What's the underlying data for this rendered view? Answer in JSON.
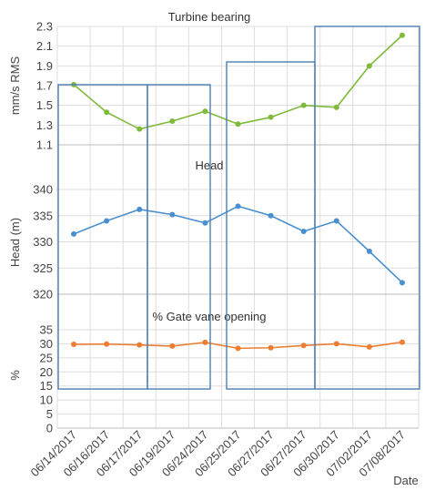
{
  "chart_data": {
    "x": [
      "06/14/2017",
      "06/16/2017",
      "06/17/2017",
      "06/19/2017",
      "06/24/2017",
      "06/25/2017",
      "06/27/2017",
      "06/27/2017",
      "06/30/2017",
      "07/02/2017",
      "07/08/2017"
    ],
    "xlabel": "Date",
    "panels": [
      {
        "type": "line",
        "title": "Turbine bearing",
        "ylabel": "mm/s RMS",
        "ylim": [
          1.1,
          2.3
        ],
        "yticks": [
          "1.1",
          "1.3",
          "1.5",
          "1.7",
          "1.9",
          "2.1",
          "2.3"
        ],
        "color": "#7fba3a",
        "values": [
          1.71,
          1.43,
          1.26,
          1.34,
          1.44,
          1.31,
          1.38,
          1.5,
          1.48,
          1.9,
          2.21
        ]
      },
      {
        "type": "line",
        "title": "Head",
        "ylabel": "Head (m)",
        "ylim": [
          320,
          340
        ],
        "yticks": [
          "320",
          "325",
          "330",
          "335",
          "340"
        ],
        "color": "#4a8fd0",
        "values": [
          331.5,
          334.0,
          336.2,
          335.2,
          333.6,
          336.8,
          335.0,
          332.0,
          334.0,
          328.2,
          322.2
        ]
      },
      {
        "type": "line",
        "title": "% Gate vane opening",
        "ylabel": "%",
        "ylim": [
          0,
          35
        ],
        "yticks": [
          "0",
          "5",
          "10",
          "15",
          "20",
          "25",
          "30",
          "35"
        ],
        "color": "#ed7d31",
        "values": [
          29.8,
          29.9,
          29.6,
          29.2,
          30.5,
          28.4,
          28.6,
          29.4,
          30.0,
          28.9,
          30.6
        ]
      }
    ],
    "grid": true,
    "highlight_boxes": "blue rectangles drawn over the dates"
  }
}
